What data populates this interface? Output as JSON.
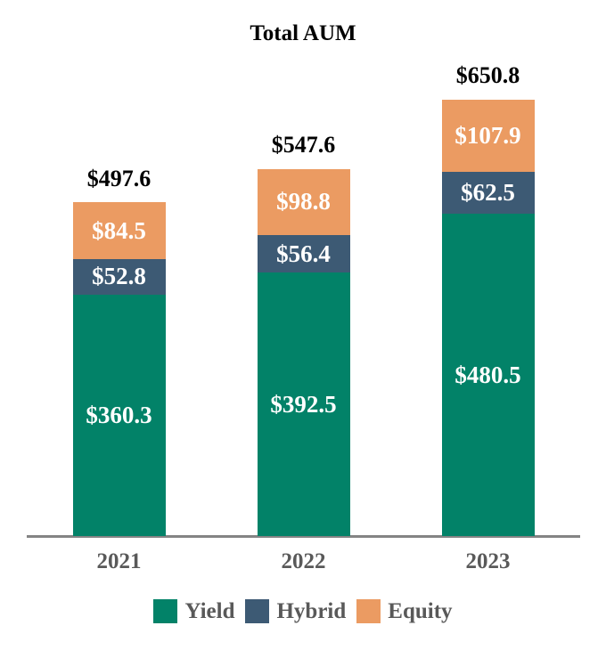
{
  "chart_data": {
    "type": "bar",
    "stacked": true,
    "title": "Total AUM",
    "categories": [
      "2021",
      "2022",
      "2023"
    ],
    "series": [
      {
        "name": "Yield",
        "color": "#028268",
        "values": [
          360.3,
          392.5,
          480.5
        ],
        "labels": [
          "$360.3",
          "$392.5",
          "$480.5"
        ]
      },
      {
        "name": "Hybrid",
        "color": "#3D5A74",
        "values": [
          52.8,
          56.4,
          62.5
        ],
        "labels": [
          "$52.8",
          "$56.4",
          "$62.5"
        ]
      },
      {
        "name": "Equity",
        "color": "#EB9B62",
        "values": [
          84.5,
          98.8,
          107.9
        ],
        "labels": [
          "$84.5",
          "$98.8",
          "$107.9"
        ]
      }
    ],
    "totals": [
      497.6,
      547.6,
      650.8
    ],
    "total_labels": [
      "$497.6",
      "$547.6",
      "$650.8"
    ],
    "legend": [
      "Yield",
      "Hybrid",
      "Equity"
    ],
    "legend_position": "bottom",
    "value_prefix": "$",
    "ylim": [
      0,
      650.8
    ],
    "grid": false,
    "colors": {
      "axis_line": "#848484",
      "tick_label_text": "#595959",
      "legend_text": "#595959",
      "total_label_text": "#000000",
      "segment_label_text": "#FFFFFF",
      "background": "#FFFFFF"
    }
  }
}
